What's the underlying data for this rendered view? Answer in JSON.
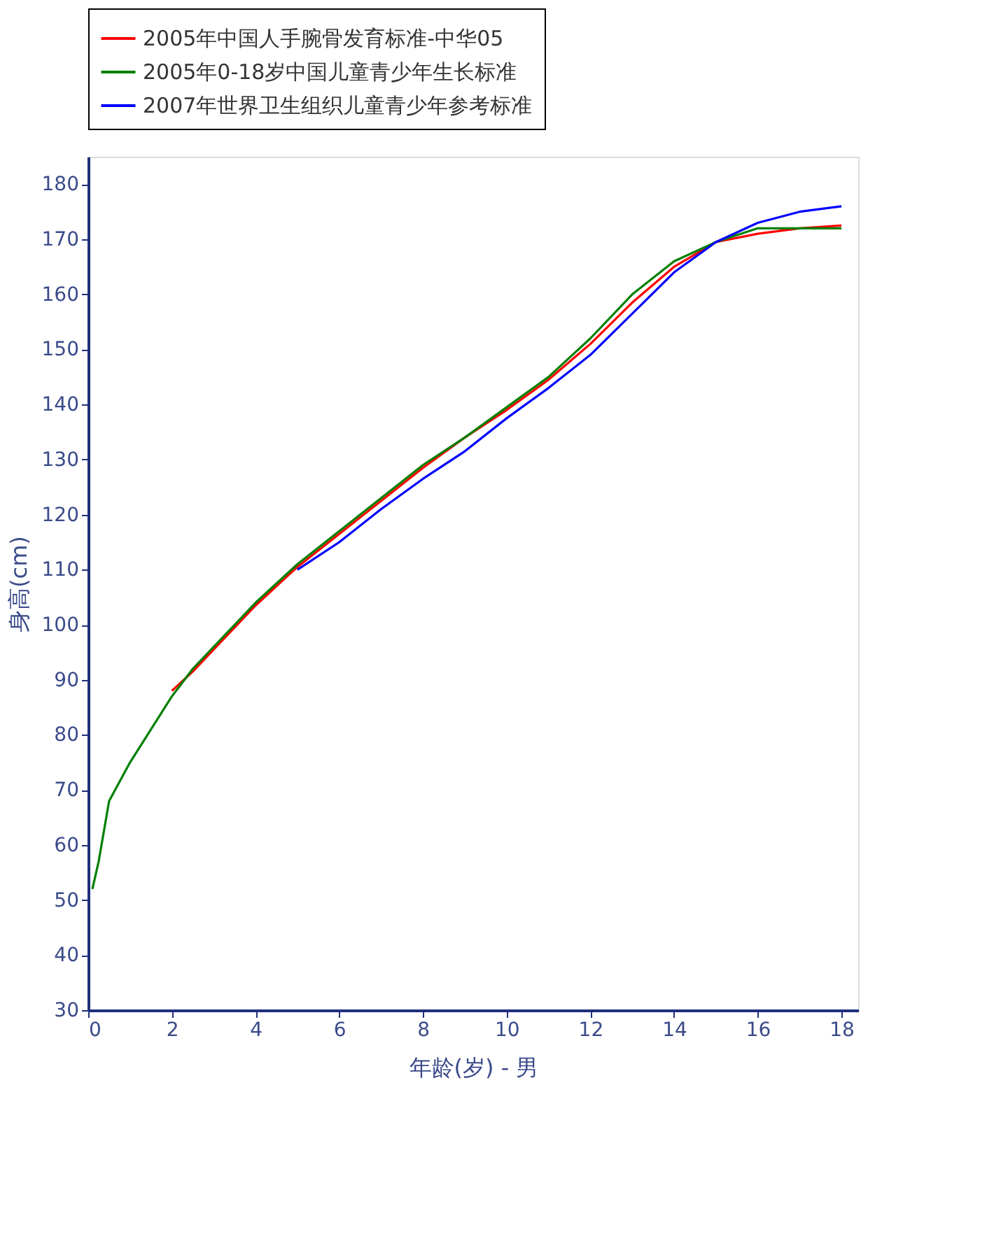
{
  "chart_data": {
    "type": "line",
    "xlabel": "年龄(岁) - 男",
    "ylabel": "身高(cm)",
    "xlim": [
      0,
      18.4
    ],
    "ylim": [
      30,
      185
    ],
    "xticks": [
      0,
      2,
      4,
      6,
      8,
      10,
      12,
      14,
      16,
      18
    ],
    "yticks": [
      30,
      40,
      50,
      60,
      70,
      80,
      90,
      100,
      110,
      120,
      130,
      140,
      150,
      160,
      170,
      180
    ],
    "grid": false,
    "legend": "top",
    "marker": "none",
    "line_style": "solid",
    "series": [
      {
        "name": "2005年中国人手腕骨发育标准-中华05",
        "color": "#ff0000",
        "x": [
          2,
          2.5,
          3,
          4,
          4.5,
          5,
          6,
          7,
          8,
          9,
          10,
          11,
          12,
          13,
          14,
          15,
          16,
          17,
          18
        ],
        "values": [
          88,
          91.5,
          95.5,
          103.5,
          107,
          110.5,
          116.5,
          122.5,
          128.5,
          134,
          139,
          144.5,
          151,
          158.5,
          165,
          169.5,
          171,
          172,
          172.5
        ]
      },
      {
        "name": "2005年0-18岁中国儿童青少年生长标准",
        "color": "#008000",
        "x": [
          0.1,
          0.25,
          0.5,
          1,
          1.5,
          2,
          2.5,
          3,
          3.5,
          4,
          4.5,
          5,
          6,
          7,
          8,
          9,
          10,
          11,
          12,
          13,
          14,
          15,
          16,
          17,
          18
        ],
        "values": [
          52,
          57,
          68,
          75,
          81,
          87,
          92,
          96,
          100,
          104,
          107.5,
          111,
          117,
          123,
          129,
          134,
          139.5,
          145,
          152,
          160,
          166,
          169.5,
          172,
          172,
          172
        ]
      },
      {
        "name": "2007年世界卫生组织儿童青少年参考标准",
        "color": "#0000ff",
        "x": [
          5,
          6,
          7,
          8,
          9,
          10,
          11,
          12,
          13,
          14,
          15,
          16,
          17,
          18
        ],
        "values": [
          110,
          115,
          121,
          126.5,
          131.5,
          137.5,
          143,
          149,
          156.5,
          164,
          169.5,
          173,
          175,
          176
        ]
      }
    ]
  }
}
